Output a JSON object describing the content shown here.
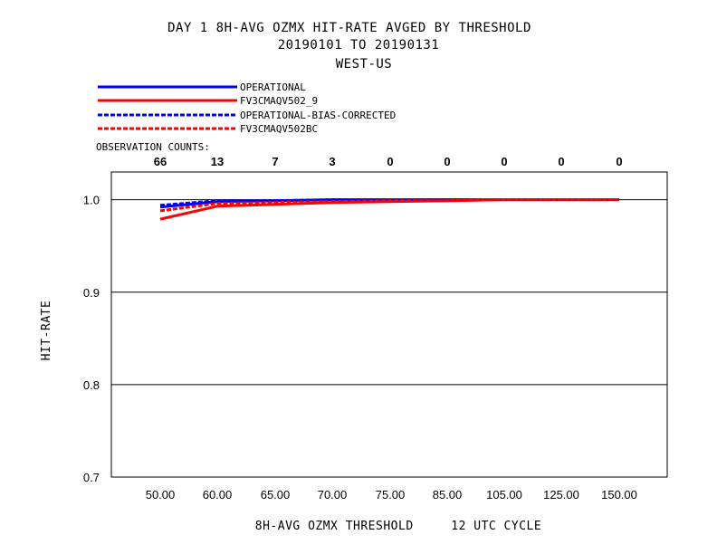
{
  "title_lines": [
    "DAY 1   8H-AVG OZMX HIT-RATE   AVGED BY THRESHOLD",
    "20190101 TO 20190131",
    "WEST-US"
  ],
  "observation_label": "OBSERVATION COUNTS:",
  "observation_counts": [
    "66",
    "13",
    "7",
    "3",
    "0",
    "0",
    "0",
    "0",
    "0"
  ],
  "chart_data": {
    "type": "line",
    "categories": [
      "50.00",
      "60.00",
      "65.00",
      "70.00",
      "75.00",
      "85.00",
      "105.00",
      "125.00",
      "150.00"
    ],
    "xlabel": "8H-AVG OZMX THRESHOLD     12 UTC CYCLE",
    "ylabel": "HIT-RATE",
    "ylim": [
      0.7,
      1.03
    ],
    "yticks": [
      "0.7",
      "0.8",
      "0.9",
      "1.0"
    ],
    "ytick_values": [
      0.7,
      0.8,
      0.9,
      1.0
    ],
    "grid": "horizontal",
    "legend_placement": "top-left",
    "series": [
      {
        "name": "OPERATIONAL",
        "color": "#0000ff",
        "dashed": false,
        "values": [
          0.992,
          0.998,
          0.999,
          1.0,
          1.0,
          1.0,
          1.0,
          1.0,
          1.0
        ]
      },
      {
        "name": "FV3CMAQV502_9",
        "color": "#ff0000",
        "dashed": false,
        "values": [
          0.979,
          0.993,
          0.995,
          0.997,
          0.998,
          0.999,
          1.0,
          1.0,
          1.0
        ]
      },
      {
        "name": "OPERATIONAL-BIAS-CORRECTED",
        "color": "#0000ff",
        "dashed": true,
        "values": [
          0.994,
          0.999,
          0.999,
          1.0,
          1.0,
          1.0,
          1.0,
          1.0,
          1.0
        ]
      },
      {
        "name": "FV3CMAQV502BC",
        "color": "#ff0000",
        "dashed": true,
        "values": [
          0.988,
          0.996,
          0.997,
          0.998,
          0.999,
          0.999,
          1.0,
          1.0,
          1.0
        ]
      }
    ]
  }
}
